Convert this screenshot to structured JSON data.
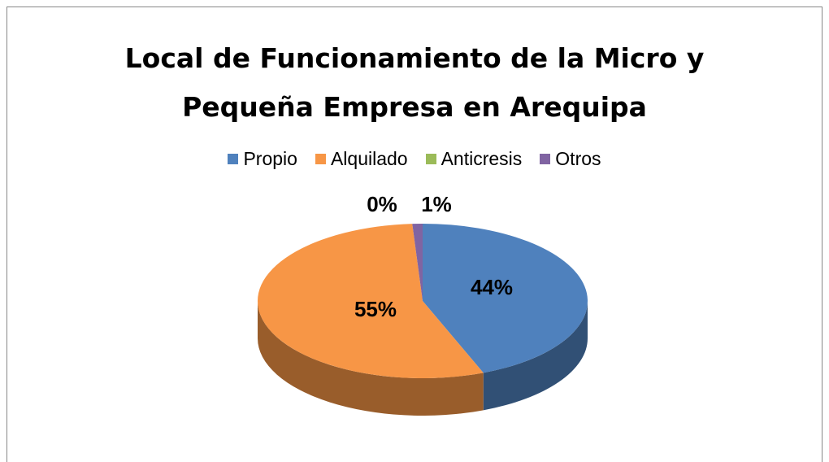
{
  "chart_data": {
    "type": "pie",
    "title": "Local de Funcionamiento de la Micro y Pequeña Empresa en Arequipa",
    "categories": [
      "Propio",
      "Alquilado",
      "Anticresis",
      "Otros"
    ],
    "values": [
      44,
      55,
      0,
      1
    ],
    "value_labels": [
      "44%",
      "55%",
      "0%",
      "1%"
    ],
    "colors": [
      "#4f81bd",
      "#f79646",
      "#9bbb59",
      "#8064a2"
    ],
    "legend": "top"
  }
}
